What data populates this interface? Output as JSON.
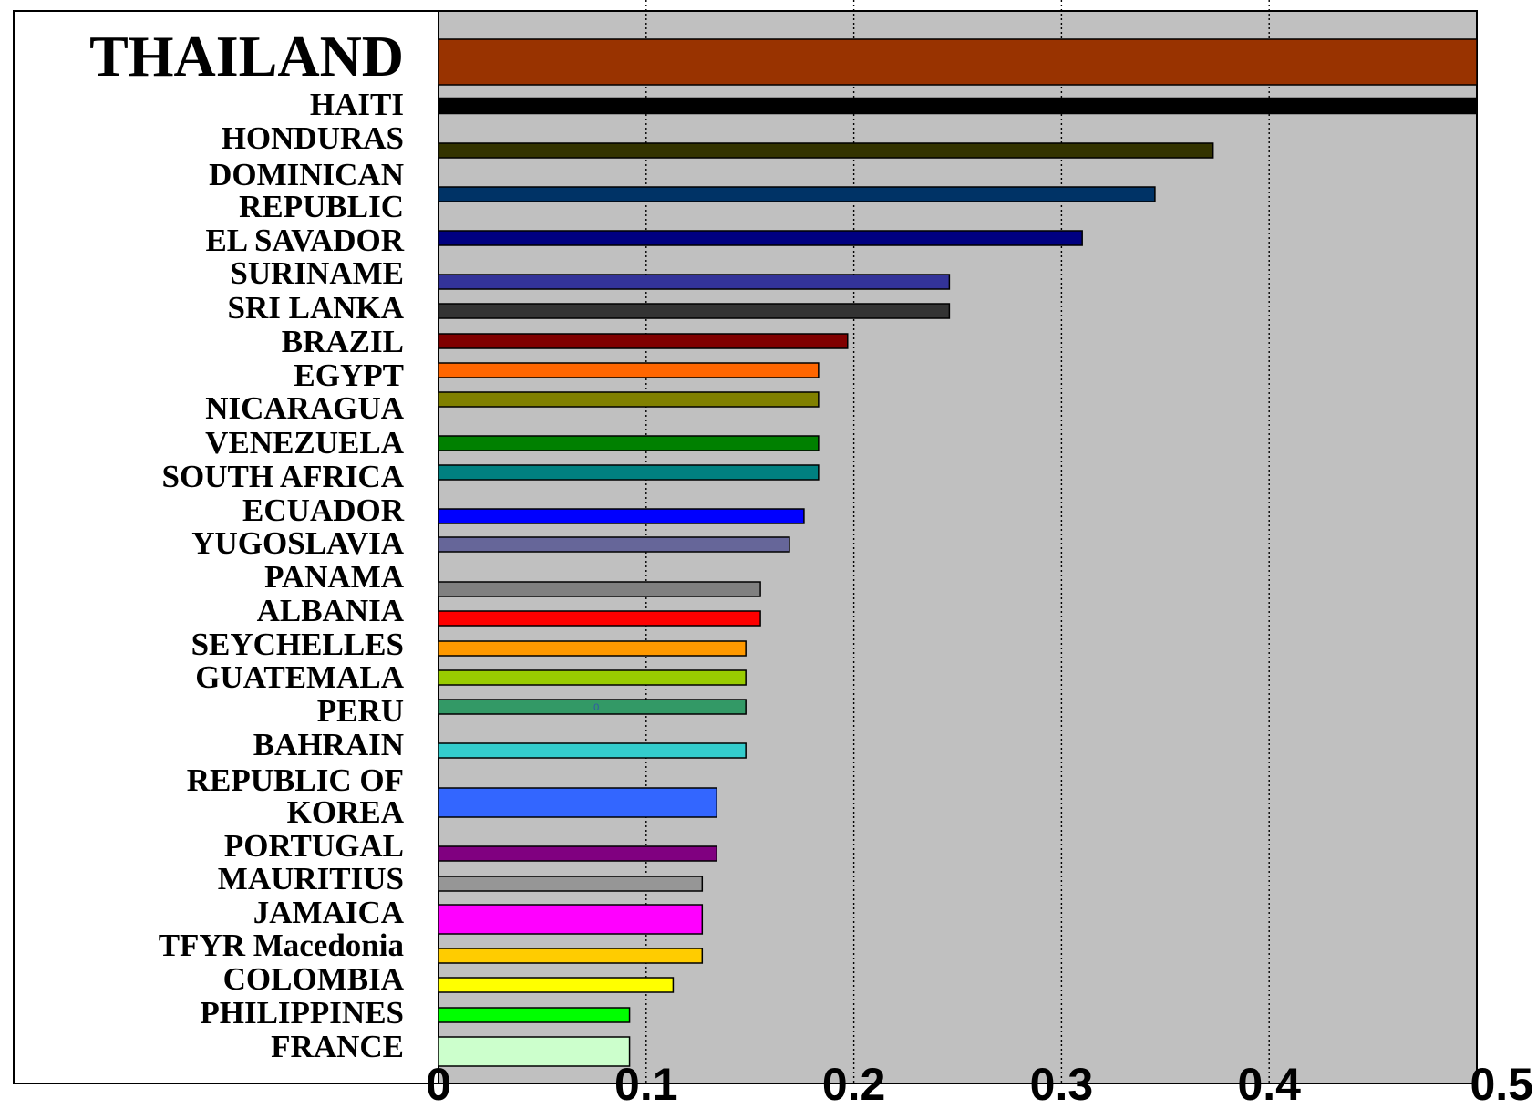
{
  "chart_data": {
    "type": "bar",
    "orientation": "horizontal",
    "xlim": [
      0,
      0.5
    ],
    "x_ticks": [
      "0",
      "0.1",
      "0.2",
      "0.3",
      "0.4",
      "0.5"
    ],
    "grid": "vertical dotted lines at 0.1, 0.2, 0.3, 0.4",
    "plot_background": "#c0c0c0",
    "categories": [
      {
        "label": [
          "THAILAND"
        ],
        "value": 0.5,
        "color": "#993300",
        "emphasis": true
      },
      {
        "label": [
          "HAITI"
        ],
        "value": 0.5,
        "color": "#000000"
      },
      {
        "label": [
          "HONDURAS"
        ],
        "value": 0.373,
        "color": "#333300"
      },
      {
        "label": [
          "DOMINICAN",
          "REPUBLIC"
        ],
        "value": 0.345,
        "color": "#003366"
      },
      {
        "label": [
          "EL SAVADOR"
        ],
        "value": 0.31,
        "color": "#000080"
      },
      {
        "label": [
          "SURINAME"
        ],
        "value": 0.246,
        "color": "#333399"
      },
      {
        "label": [
          "SRI LANKA"
        ],
        "value": 0.246,
        "color": "#333333"
      },
      {
        "label": [
          "BRAZIL"
        ],
        "value": 0.197,
        "color": "#800000"
      },
      {
        "label": [
          "EGYPT"
        ],
        "value": 0.183,
        "color": "#ff6600"
      },
      {
        "label": [
          "NICARAGUA"
        ],
        "value": 0.183,
        "color": "#808000"
      },
      {
        "label": [
          "VENEZUELA"
        ],
        "value": 0.183,
        "color": "#008000"
      },
      {
        "label": [
          "SOUTH AFRICA"
        ],
        "value": 0.183,
        "color": "#008080"
      },
      {
        "label": [
          "ECUADOR"
        ],
        "value": 0.176,
        "color": "#0000ff"
      },
      {
        "label": [
          "YUGOSLAVIA"
        ],
        "value": 0.169,
        "color": "#666699"
      },
      {
        "label": [
          "PANAMA"
        ],
        "value": 0.155,
        "color": "#808080"
      },
      {
        "label": [
          "ALBANIA"
        ],
        "value": 0.155,
        "color": "#ff0000"
      },
      {
        "label": [
          "SEYCHELLES"
        ],
        "value": 0.148,
        "color": "#ff9900"
      },
      {
        "label": [
          "GUATEMALA"
        ],
        "value": 0.148,
        "color": "#99cc00"
      },
      {
        "label": [
          "PERU"
        ],
        "value": 0.148,
        "color": "#339966"
      },
      {
        "label": [
          "BAHRAIN"
        ],
        "value": 0.148,
        "color": "#33cccc"
      },
      {
        "label": [
          "REPUBLIC OF",
          "KOREA"
        ],
        "value": 0.134,
        "color": "#3366ff"
      },
      {
        "label": [
          "PORTUGAL"
        ],
        "value": 0.134,
        "color": "#800080"
      },
      {
        "label": [
          "MAURITIUS"
        ],
        "value": 0.127,
        "color": "#969696"
      },
      {
        "label": [
          "JAMAICA"
        ],
        "value": 0.127,
        "color": "#ff00ff"
      },
      {
        "label": [
          "TFYR Macedonia"
        ],
        "value": 0.127,
        "color": "#ffcc00"
      },
      {
        "label": [
          "COLOMBIA"
        ],
        "value": 0.113,
        "color": "#ffff00"
      },
      {
        "label": [
          "PHILIPPINES"
        ],
        "value": 0.092,
        "color": "#00ff00"
      },
      {
        "label": [
          "FRANCE"
        ],
        "value": 0.092,
        "color": "#ccffcc"
      }
    ],
    "annotations": [
      {
        "text": "0",
        "x": 0.076,
        "category_index": 18
      }
    ]
  }
}
